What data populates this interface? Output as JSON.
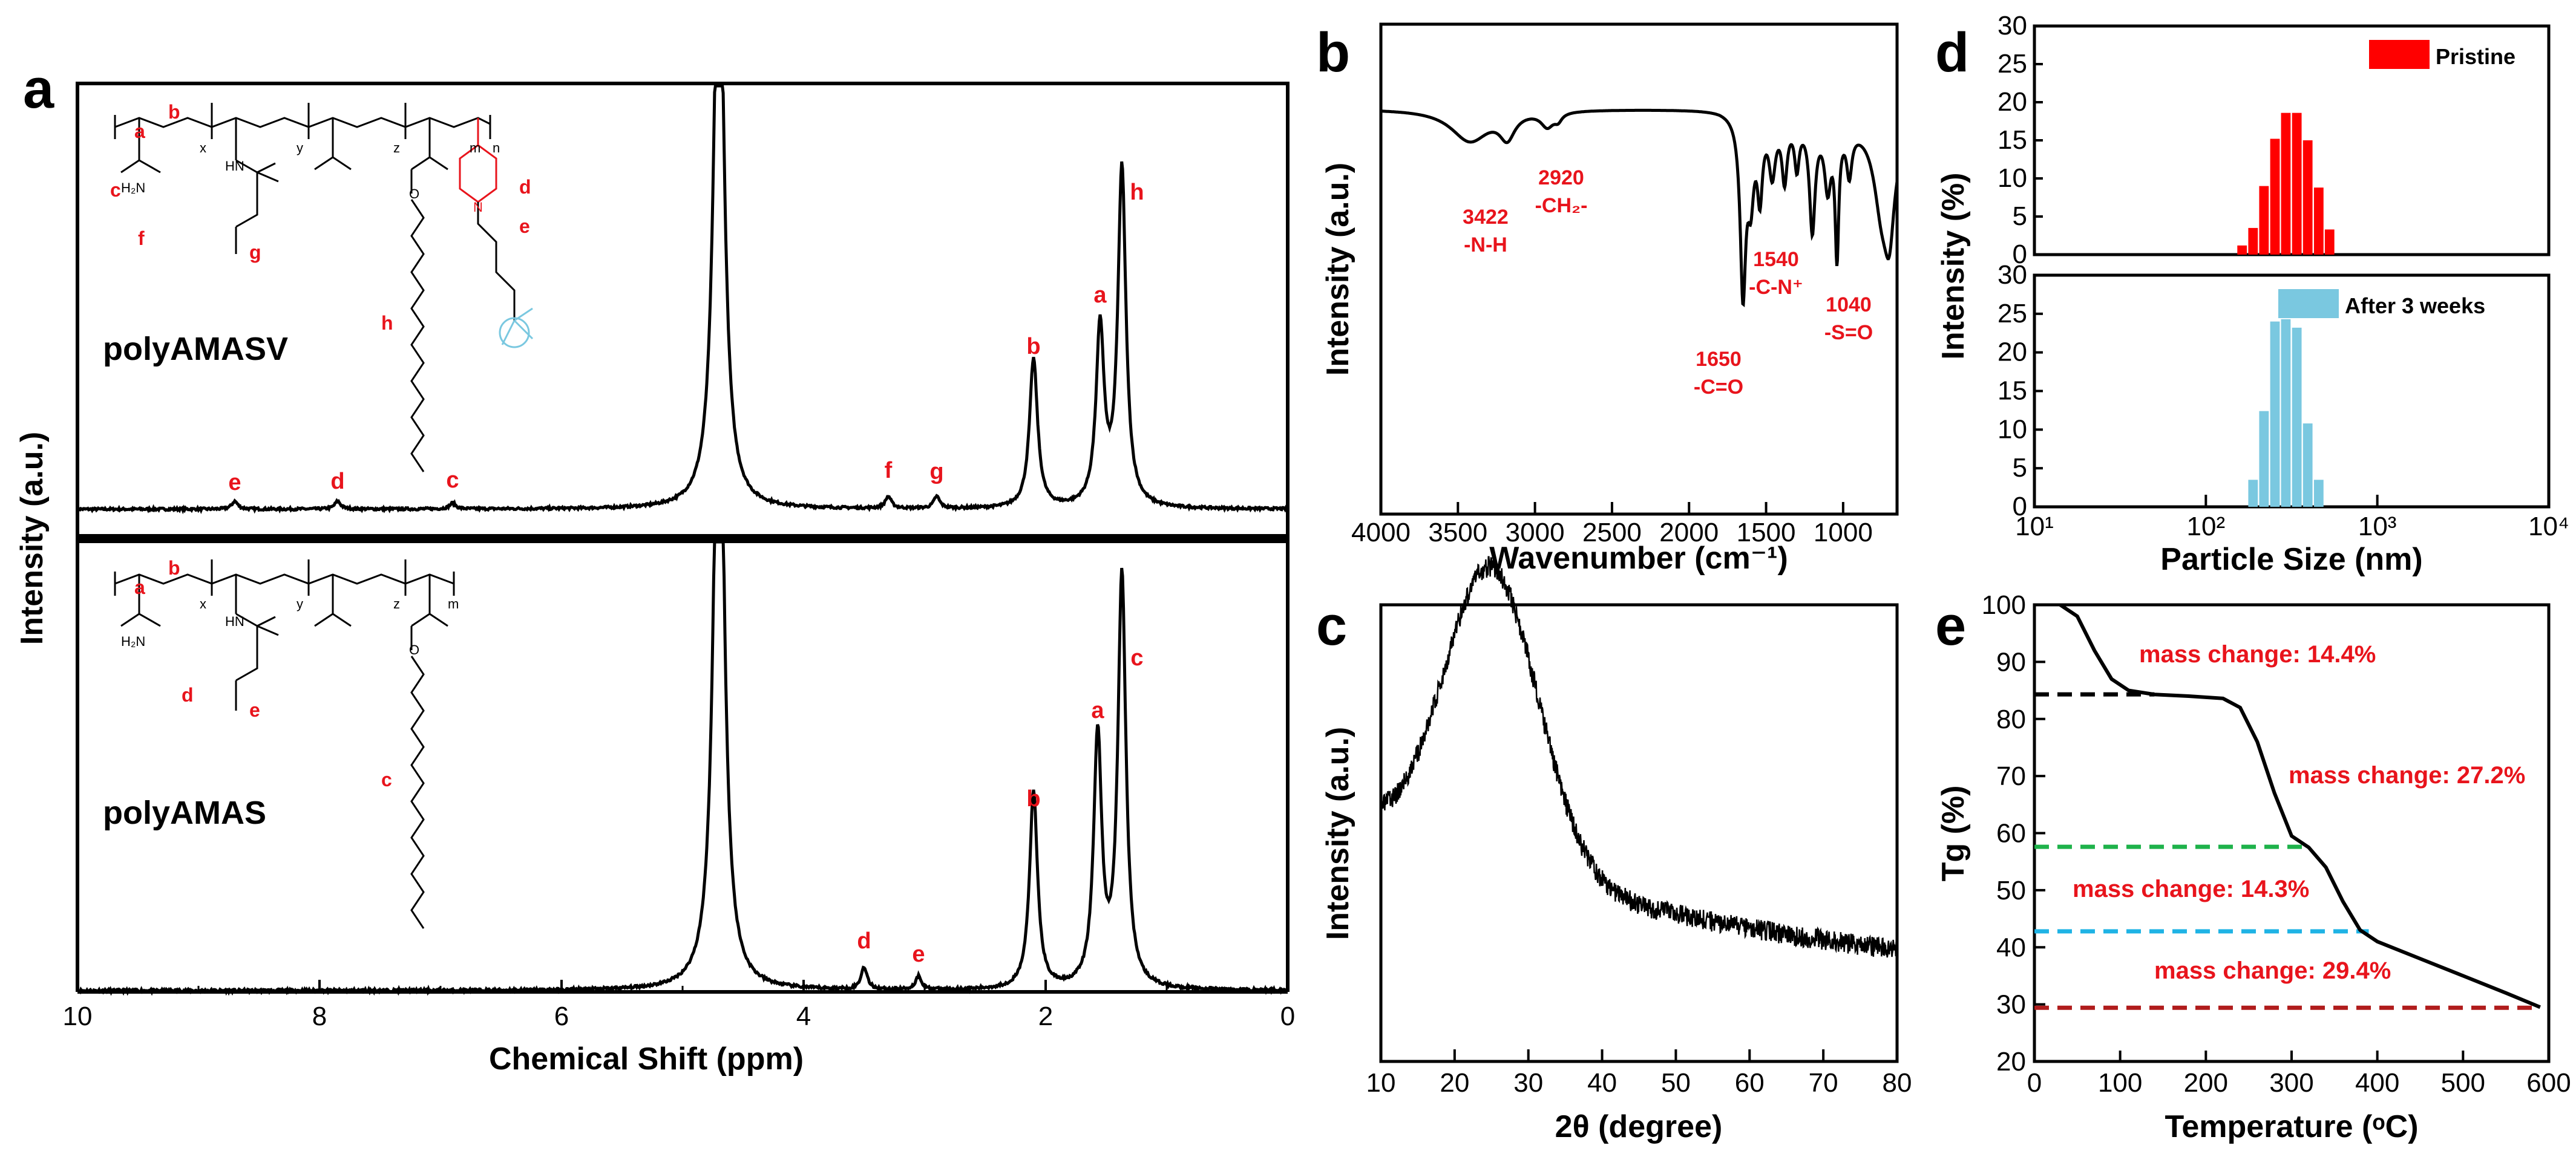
{
  "chart_data": [
    {
      "panel": "a",
      "type": "line",
      "xlabel": "Chemical Shift (ppm)",
      "ylabel": "Intensity (a.u.)",
      "xlim": [
        10,
        0
      ],
      "x_ticks": [
        "10",
        "8",
        "6",
        "4",
        "2",
        "0"
      ],
      "top": {
        "name": "polyAMASV",
        "peaks": [
          {
            "ppm": 8.7,
            "height": 0.02,
            "label": "e"
          },
          {
            "ppm": 7.85,
            "height": 0.02,
            "label": "d"
          },
          {
            "ppm": 6.9,
            "height": 0.015,
            "label": "c"
          },
          {
            "ppm": 4.7,
            "height": 1.6,
            "label": ""
          },
          {
            "ppm": 3.3,
            "height": 0.03,
            "label": "f"
          },
          {
            "ppm": 2.9,
            "height": 0.03,
            "label": "g"
          },
          {
            "ppm": 2.1,
            "height": 0.38,
            "label": "b"
          },
          {
            "ppm": 1.55,
            "height": 0.45,
            "label": "a"
          },
          {
            "ppm": 1.37,
            "height": 0.86,
            "label": "h"
          }
        ],
        "structure_labels": [
          "a",
          "b",
          "c",
          "d",
          "e",
          "f",
          "g",
          "h"
        ],
        "subscripts": [
          "x",
          "y",
          "z",
          "m",
          "n"
        ],
        "formula_text": {
          "h2n": "H₂N",
          "hn": "HN",
          "o": "O",
          "n_plus": "N"
        }
      },
      "bottom": {
        "name": "polyAMAS",
        "peaks": [
          {
            "ppm": 3.5,
            "height": 0.05,
            "label": "d"
          },
          {
            "ppm": 3.05,
            "height": 0.03,
            "label": "e"
          },
          {
            "ppm": 4.7,
            "height": 1.6,
            "label": ""
          },
          {
            "ppm": 2.1,
            "height": 0.44,
            "label": "b"
          },
          {
            "ppm": 1.57,
            "height": 0.56,
            "label": "a"
          },
          {
            "ppm": 1.37,
            "height": 0.92,
            "label": "c"
          }
        ],
        "structure_labels": [
          "a",
          "b",
          "c",
          "d",
          "e"
        ],
        "subscripts": [
          "x",
          "y",
          "z",
          "m"
        ],
        "formula_text": {
          "h2n": "H₂N",
          "hn": "HN",
          "o": "O"
        }
      }
    },
    {
      "panel": "b",
      "type": "line",
      "xlabel": "Wavenumber (cm⁻¹)",
      "ylabel": "Intensity (a.u.)",
      "xlim": [
        4000,
        650
      ],
      "x_ticks": [
        "4000",
        "3500",
        "3000",
        "2500",
        "2000",
        "1500",
        "1000"
      ],
      "annotations": [
        {
          "value": "3422",
          "group": "-N-H"
        },
        {
          "value": "2920",
          "group": "-CH₂-"
        },
        {
          "value": "1650",
          "group": "-C=O"
        },
        {
          "value": "1540",
          "group": "-C-N⁺"
        },
        {
          "value": "1040",
          "group": "-S=O"
        }
      ]
    },
    {
      "panel": "c",
      "type": "line",
      "xlabel": "2θ (degree)",
      "ylabel": "Intensity (a.u.)",
      "xlim": [
        10,
        80
      ],
      "x_ticks": [
        "10",
        "20",
        "30",
        "40",
        "50",
        "60",
        "70",
        "80"
      ],
      "broad_peak_2theta": 25
    },
    {
      "panel": "d",
      "type": "bar",
      "xlabel": "Particle Size (nm)",
      "ylabel": "Intensity (%)",
      "xscale": "log",
      "xlim": [
        10,
        10000
      ],
      "x_ticks": [
        "10¹",
        "10²",
        "10³",
        "10⁴"
      ],
      "series": [
        {
          "name": "Pristine",
          "color": "#ff0000",
          "ylim": [
            0,
            30
          ],
          "y_ticks": [
            "0",
            "5",
            "10",
            "15",
            "20",
            "25",
            "30"
          ],
          "x": [
            164,
            190,
            220,
            255,
            295,
            342,
            396,
            459,
            531
          ],
          "values": [
            1.2,
            3.5,
            9.0,
            15.2,
            18.6,
            18.6,
            15.0,
            8.8,
            3.3
          ]
        },
        {
          "name": "After 3 weeks",
          "color": "#7ac8e0",
          "ylim": [
            0,
            30
          ],
          "y_ticks": [
            "0",
            "5",
            "10",
            "15",
            "20",
            "25",
            "30"
          ],
          "x": [
            190,
            220,
            255,
            295,
            342,
            396,
            459
          ],
          "values": [
            3.5,
            12.4,
            24.0,
            24.3,
            23.2,
            10.8,
            3.5
          ]
        }
      ]
    },
    {
      "panel": "e",
      "type": "line",
      "xlabel": "Temperature (ᵒC)",
      "ylabel": "Tg (%)",
      "xlim": [
        0,
        600
      ],
      "ylim": [
        20,
        100
      ],
      "x_ticks": [
        "0",
        "100",
        "200",
        "300",
        "400",
        "500",
        "600"
      ],
      "y_ticks": [
        "20",
        "30",
        "40",
        "50",
        "60",
        "70",
        "80",
        "90",
        "100"
      ],
      "curve": {
        "x": [
          30,
          50,
          70,
          90,
          110,
          140,
          180,
          220,
          240,
          260,
          280,
          300,
          320,
          340,
          360,
          380,
          400,
          450,
          500,
          550,
          590
        ],
        "y": [
          100,
          98,
          92,
          87,
          85,
          84.3,
          84,
          83.6,
          82,
          76,
          67,
          59.5,
          57.5,
          54,
          48,
          43,
          41,
          38,
          35,
          32,
          29.5
        ]
      },
      "levels": [
        {
          "value": 84.3,
          "color": "#000000",
          "x_end": 140
        },
        {
          "value": 57.6,
          "color": "#1eb24a",
          "x_end": 320
        },
        {
          "value": 42.8,
          "color": "#1fb3e5",
          "x_end": 390
        },
        {
          "value": 29.4,
          "color": "#b01c1c",
          "x_end": 590
        }
      ],
      "annotations": [
        {
          "text": "mass change: 14.4%"
        },
        {
          "text": "mass change: 27.2%"
        },
        {
          "text": "mass change: 14.3%"
        },
        {
          "text": "mass change: 29.4%"
        }
      ]
    }
  ]
}
